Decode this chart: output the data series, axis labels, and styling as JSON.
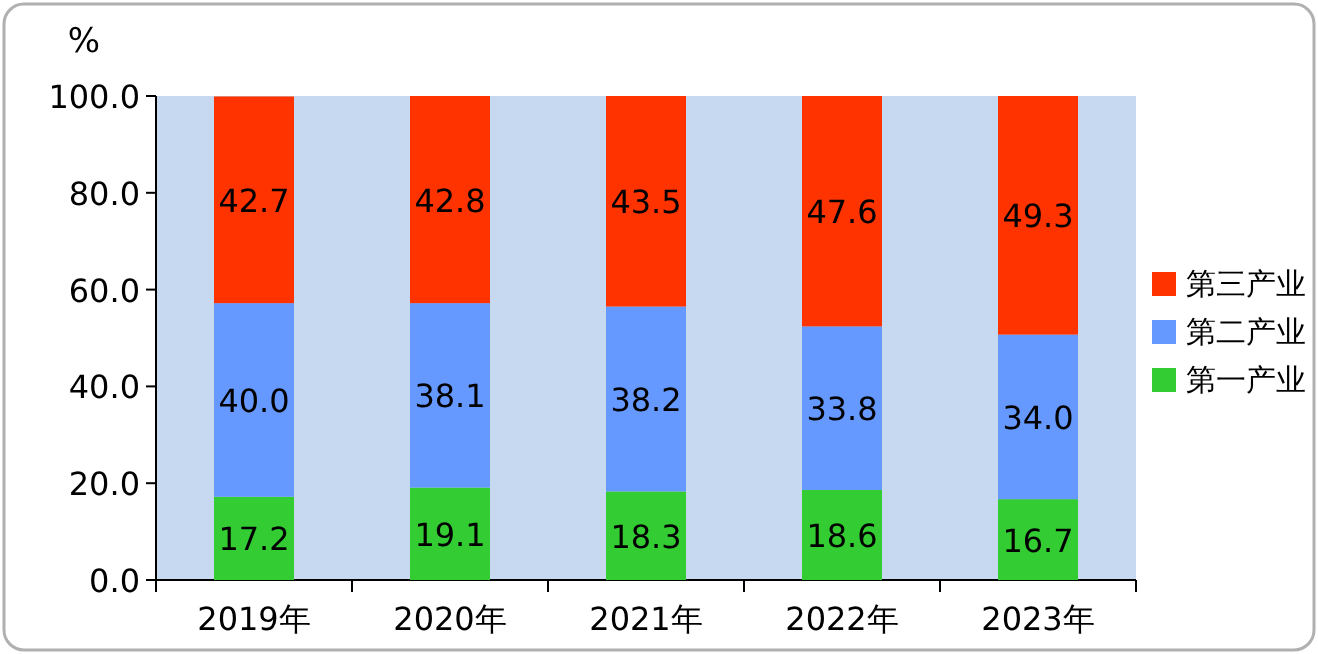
{
  "chart_data": {
    "type": "bar",
    "stacked": true,
    "ylabel": "%",
    "categories": [
      "2019年",
      "2020年",
      "2021年",
      "2022年",
      "2023年"
    ],
    "series": [
      {
        "name": "第一产业",
        "color": "#33cc33",
        "values": [
          17.2,
          19.1,
          18.3,
          18.6,
          16.7
        ],
        "value_labels": [
          "17.2",
          "19.1",
          "18.3",
          "18.6",
          "16.7"
        ]
      },
      {
        "name": "第二产业",
        "color": "#6699ff",
        "values": [
          40.0,
          38.1,
          38.2,
          33.8,
          34.0
        ],
        "value_labels": [
          "40.0",
          "38.1",
          "38.2",
          "33.8",
          "34.0"
        ]
      },
      {
        "name": "第三产业",
        "color": "#ff3300",
        "values": [
          42.7,
          42.8,
          43.5,
          47.6,
          49.3
        ],
        "value_labels": [
          "42.7",
          "42.8",
          "43.5",
          "47.6",
          "49.3"
        ]
      }
    ],
    "ylim": [
      0,
      100
    ],
    "yticks": [
      {
        "value": 0,
        "label": "0.0"
      },
      {
        "value": 20,
        "label": "20.0"
      },
      {
        "value": 40,
        "label": "40.0"
      },
      {
        "value": 60,
        "label": "60.0"
      },
      {
        "value": 80,
        "label": "80.0"
      },
      {
        "value": 100,
        "label": "100.0"
      }
    ],
    "grid": false,
    "legend": "right"
  }
}
